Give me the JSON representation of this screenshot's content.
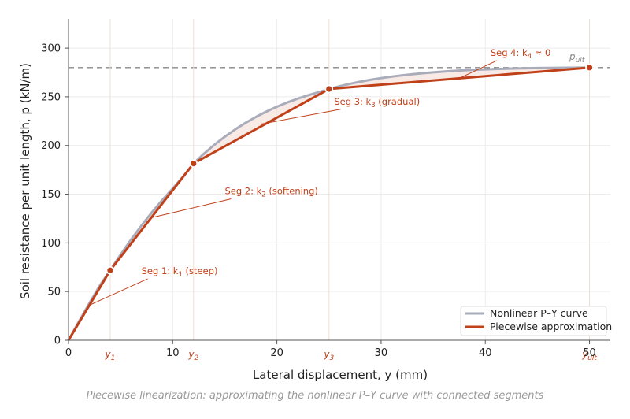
{
  "chart_data": {
    "type": "line",
    "caption": "Piecewise linearization: approximating the nonlinear P–Y curve with connected segments",
    "xlabel": "Lateral displacement,  y   (mm)",
    "ylabel": "Soil resistance per unit length,  p   (kN/m)",
    "xlim": [
      0,
      52
    ],
    "ylim": [
      0,
      330
    ],
    "xticks": [
      0,
      10,
      20,
      30,
      40,
      50
    ],
    "yticks": [
      0,
      50,
      100,
      150,
      200,
      250,
      300
    ],
    "grid": true,
    "legend_position": "bottom-right",
    "p_ult": 280,
    "p_ult_label": "p_ult",
    "y_markers": [
      {
        "label": "y1",
        "sub": "1",
        "x": 4
      },
      {
        "label": "y2",
        "sub": "2",
        "x": 12
      },
      {
        "label": "y3",
        "sub": "3",
        "x": 25
      },
      {
        "label": "y_ult",
        "sub": "ult",
        "x": 50
      }
    ],
    "series": [
      {
        "name": "Nonlinear P–Y curve",
        "color": "#a9acba",
        "x": [
          0,
          1,
          2,
          3,
          4,
          5,
          6,
          7,
          8,
          9,
          10,
          11,
          12,
          13,
          14,
          15,
          16,
          17,
          18,
          19,
          20,
          21,
          22,
          23,
          24,
          25,
          26,
          27,
          28,
          29,
          30,
          31,
          32,
          33,
          34,
          35,
          36,
          37,
          38,
          39,
          40,
          41,
          42,
          43,
          44,
          45,
          46,
          47,
          48,
          49,
          50
        ],
        "y": [
          0,
          19.3,
          38.0,
          56.1,
          71.8,
          88.0,
          103.3,
          117.7,
          131.3,
          144.0,
          155.8,
          168.0,
          181.5,
          191.6,
          200.7,
          209.0,
          216.5,
          223.3,
          229.4,
          234.9,
          239.8,
          244.2,
          248.1,
          251.6,
          254.7,
          258.0,
          260.8,
          263.3,
          265.5,
          267.5,
          269.2,
          270.7,
          272.0,
          273.2,
          274.2,
          275.1,
          275.9,
          276.6,
          277.2,
          277.7,
          278.1,
          278.5,
          278.8,
          279.1,
          279.3,
          279.5,
          279.7,
          279.8,
          279.9,
          280.0,
          280.0
        ]
      },
      {
        "name": "Piecewise approximation",
        "color": "#c0401a",
        "x": [
          0,
          4,
          12,
          25,
          50
        ],
        "y": [
          0,
          71.8,
          181.5,
          258.0,
          280.0
        ]
      }
    ],
    "annotations": [
      {
        "text": "Seg 1:  k",
        "sub": "1",
        "rest": " (steep)",
        "x": 7,
        "y": 68,
        "target_x": 2,
        "target_y": 36
      },
      {
        "text": "Seg 2:  k",
        "sub": "2",
        "rest": " (softening)",
        "x": 15,
        "y": 150,
        "target_x": 8,
        "target_y": 126
      },
      {
        "text": "Seg 3:  k",
        "sub": "3",
        "rest": " (gradual)",
        "x": 25.5,
        "y": 242,
        "target_x": 18.5,
        "target_y": 222
      },
      {
        "text": "Seg 4:  k",
        "sub": "4",
        "rest": " ≈ 0",
        "x": 40.5,
        "y": 292,
        "target_x": 37.5,
        "target_y": 269
      }
    ]
  }
}
